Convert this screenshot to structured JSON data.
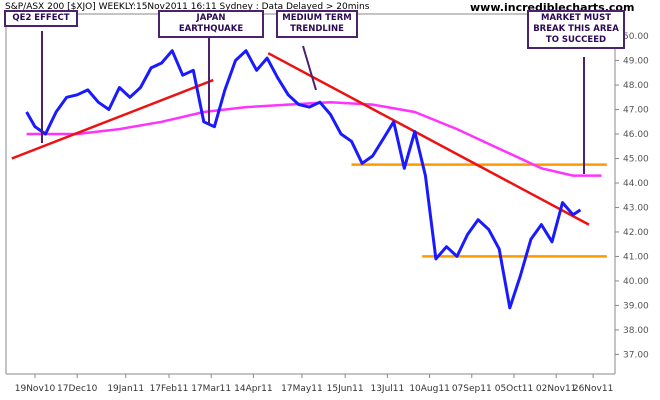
{
  "header": {
    "left": "S&P/ASX 200 [$XJO] WEEKLY:15Nov2011 16:11 Sydney : Data Delayed > 20mins",
    "site": "www.incrediblecharts.com"
  },
  "annotations": {
    "qe2": "QE2 EFFECT",
    "japan": "JAPAN EARTHQUAKE",
    "trend": "MEDIUM TERM TRENDLINE",
    "market": "MARKET MUST BREAK THIS AREA TO SUCCEED"
  },
  "chart_data": {
    "type": "line",
    "title": "S&P/ASX 200 [$XJO] WEEKLY",
    "ylabel": "",
    "xlabel": "",
    "ylim": [
      36.2,
      50.9
    ],
    "grid": false,
    "y_axis_side": "right",
    "y_ticks": [
      "37.00",
      "38.00",
      "39.00",
      "40.00",
      "41.00",
      "42.00",
      "43.00",
      "44.00",
      "45.00",
      "46.00",
      "47.00",
      "48.00",
      "49.00",
      "50.00"
    ],
    "x_ticks": [
      {
        "label": "19Nov10",
        "week": 0
      },
      {
        "label": "17Dec10",
        "week": 4
      },
      {
        "label": "19Jan11",
        "week": 8.6
      },
      {
        "label": "17Feb11",
        "week": 12.7
      },
      {
        "label": "17Mar11",
        "week": 16.7
      },
      {
        "label": "14Apr11",
        "week": 20.7
      },
      {
        "label": "17May11",
        "week": 25.3
      },
      {
        "label": "15Jun11",
        "week": 29.4
      },
      {
        "label": "13Jul11",
        "week": 33.4
      },
      {
        "label": "10Aug11",
        "week": 37.4
      },
      {
        "label": "07Sep11",
        "week": 41.4
      },
      {
        "label": "05Oct11",
        "week": 45.4
      },
      {
        "label": "02Nov11",
        "week": 49.4
      },
      {
        "label": "26Nov11",
        "week": 52.9
      }
    ],
    "series": [
      {
        "name": "price",
        "color": "#1a1aff",
        "x": [
          -0.8,
          0,
          1,
          2,
          3,
          4,
          5,
          6,
          7,
          8,
          9,
          10,
          11,
          12,
          13,
          14,
          15,
          16,
          17,
          18,
          19,
          20,
          21,
          22,
          23,
          24,
          25,
          26,
          27,
          28,
          29,
          30,
          31,
          32,
          33,
          34,
          35,
          36,
          37,
          38,
          39,
          40,
          41,
          42,
          43,
          44,
          45,
          46,
          47,
          48,
          49,
          50,
          51,
          51.7
        ],
        "values": [
          46.9,
          46.3,
          46.0,
          46.9,
          47.5,
          47.6,
          47.8,
          47.3,
          47.0,
          47.9,
          47.5,
          47.9,
          48.7,
          48.9,
          49.4,
          48.4,
          48.6,
          46.5,
          46.3,
          47.8,
          49.0,
          49.4,
          48.6,
          49.1,
          48.3,
          47.6,
          47.2,
          47.1,
          47.3,
          46.8,
          46.0,
          45.7,
          44.8,
          45.1,
          45.8,
          46.5,
          44.6,
          46.1,
          44.3,
          40.9,
          41.4,
          41.0,
          41.9,
          42.5,
          42.1,
          41.3,
          38.9,
          40.2,
          41.7,
          42.3,
          41.6,
          43.2,
          42.7,
          42.9
        ]
      },
      {
        "name": "moving average",
        "color": "#ff33ff",
        "x": [
          -0.8,
          4,
          8,
          12,
          16,
          20,
          24,
          28,
          32,
          36,
          40,
          44,
          48,
          51,
          53.7
        ],
        "values": [
          46.0,
          46.0,
          46.2,
          46.5,
          46.9,
          47.1,
          47.2,
          47.3,
          47.2,
          46.9,
          46.2,
          45.4,
          44.6,
          44.3,
          44.3
        ]
      },
      {
        "name": "uptrend line",
        "color": "#ee1111",
        "x": [
          -2.2,
          16.9
        ],
        "values": [
          45.0,
          48.2
        ]
      },
      {
        "name": "medium term trendline",
        "color": "#ee1111",
        "x": [
          22.1,
          52.5
        ],
        "values": [
          49.3,
          42.3
        ]
      },
      {
        "name": "resistance",
        "color": "#ff9900",
        "x": [
          30,
          54.2
        ],
        "values": [
          44.75,
          44.75
        ]
      },
      {
        "name": "support",
        "color": "#ff9900",
        "x": [
          36.7,
          54.2
        ],
        "values": [
          41.0,
          41.0
        ]
      }
    ]
  }
}
